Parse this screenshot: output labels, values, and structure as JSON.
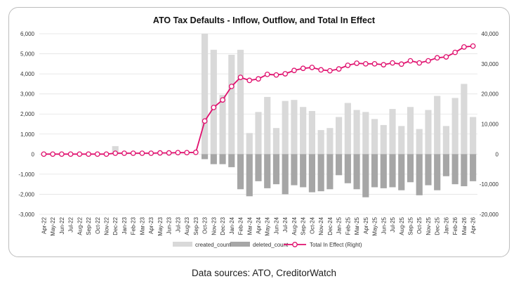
{
  "page": {
    "footer": "Data sources: ATO, CreditorWatch"
  },
  "chart_data": {
    "type": "bar",
    "title": "ATO Tax Defaults - Inflow, Outflow, and Total In Effect",
    "categories": [
      "Apr-22",
      "May-22",
      "Jun-22",
      "Jul-22",
      "Aug-22",
      "Sep-22",
      "Oct-22",
      "Nov-22",
      "Dec-22",
      "Jan-23",
      "Feb-23",
      "Mar-23",
      "Apr-23",
      "May-23",
      "Jun-23",
      "Jul-23",
      "Aug-23",
      "Sep-23",
      "Oct-23",
      "Nov-23",
      "Dec-23",
      "Jan-24",
      "Feb-24",
      "Mar-24",
      "Apr-24",
      "May-24",
      "Jun-24",
      "Jul-24",
      "Aug-24",
      "Sep-24",
      "Oct-24",
      "Nov-24",
      "Dec-24",
      "Jan-25",
      "Feb-25",
      "Mar-25",
      "Apr-25",
      "May-25",
      "Jun-25",
      "Jul-25",
      "Aug-25",
      "Sep-25",
      "Oct-25",
      "Nov-25",
      "Dec-25",
      "Jan-26",
      "Feb-26",
      "Mar-26",
      "Apr-26"
    ],
    "y_left": {
      "min": -3000,
      "max": 6000,
      "step": 1000
    },
    "y_right": {
      "min": -20000,
      "max": 40000,
      "step": 10000
    },
    "grid": true,
    "legend_position": "bottom",
    "series": [
      {
        "name": "created_count",
        "kind": "bar",
        "axis": "left",
        "color": "#d9d9d9",
        "values": [
          0,
          0,
          0,
          0,
          0,
          0,
          0,
          0,
          400,
          0,
          0,
          0,
          0,
          0,
          0,
          0,
          0,
          0,
          6000,
          5200,
          2950,
          4950,
          5200,
          1050,
          2100,
          2850,
          1300,
          2650,
          2700,
          2350,
          2150,
          1200,
          1300,
          1850,
          2550,
          2200,
          2100,
          1750,
          1450,
          2250,
          1400,
          2350,
          1250,
          2200,
          2900,
          1400,
          2800,
          3500,
          1850
        ]
      },
      {
        "name": "deleted_count",
        "kind": "bar",
        "axis": "left",
        "color": "#a6a6a6",
        "values": [
          0,
          0,
          0,
          0,
          0,
          0,
          0,
          0,
          0,
          0,
          0,
          0,
          0,
          0,
          0,
          0,
          0,
          0,
          -250,
          -500,
          -500,
          -650,
          -1750,
          -2100,
          -1350,
          -1700,
          -1500,
          -2000,
          -1550,
          -1650,
          -1900,
          -1850,
          -1750,
          -1050,
          -1450,
          -1750,
          -2150,
          -1650,
          -1700,
          -1650,
          -1800,
          -1400,
          -2050,
          -1550,
          -1800,
          -1100,
          -1500,
          -1600,
          -1350
        ]
      },
      {
        "name": "Total In Effect (Right)",
        "kind": "line",
        "axis": "right",
        "color": "#e0106e",
        "values": [
          0,
          0,
          0,
          0,
          0,
          0,
          0,
          0,
          300,
          300,
          300,
          300,
          300,
          400,
          400,
          500,
          500,
          600,
          11000,
          15500,
          18000,
          22500,
          25500,
          24500,
          25000,
          26500,
          26300,
          26700,
          27800,
          28500,
          28800,
          28000,
          27700,
          28300,
          29500,
          30200,
          30000,
          30000,
          29700,
          30300,
          29900,
          31000,
          30300,
          31000,
          32000,
          32300,
          33800,
          35600,
          35900
        ]
      }
    ]
  }
}
